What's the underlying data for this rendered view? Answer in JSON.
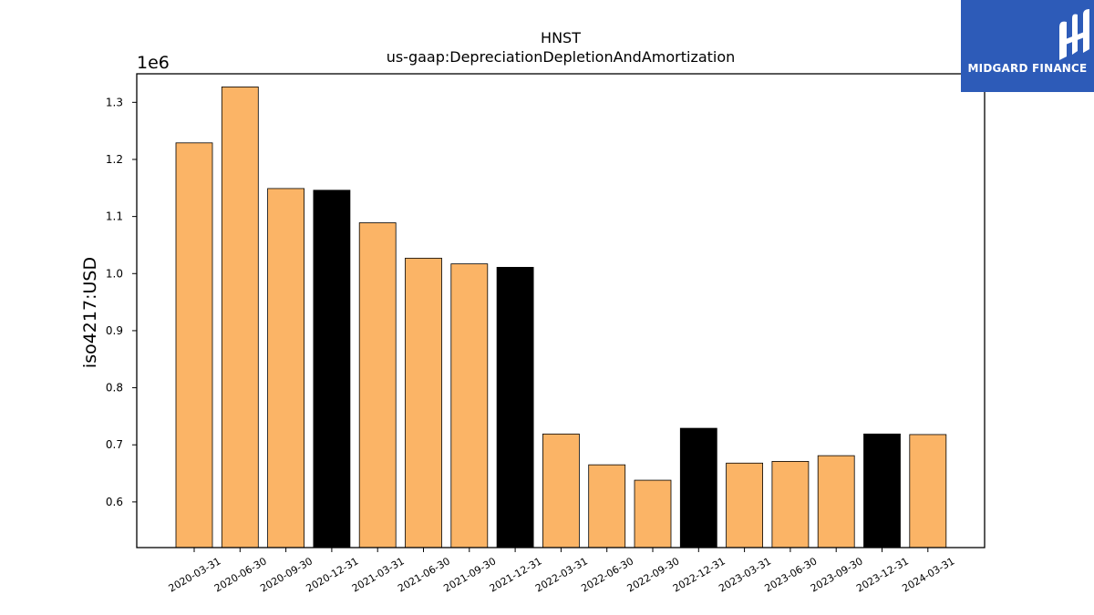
{
  "chart_data": {
    "type": "bar",
    "title": "HNST",
    "subtitle": "us-gaap:DepreciationDepletionAndAmortization",
    "ylabel": "iso4217:USD",
    "xlabel": "",
    "y_scale_label": "1e6",
    "ylim": [
      520000,
      1350000
    ],
    "y_ticks": [
      600000,
      700000,
      800000,
      900000,
      1000000,
      1100000,
      1200000,
      1300000
    ],
    "y_tick_labels": [
      "0.6",
      "0.7",
      "0.8",
      "0.9",
      "1.0",
      "1.1",
      "1.2",
      "1.3"
    ],
    "categories": [
      "2020-03-31",
      "2020-06-30",
      "2020-09-30",
      "2020-12-31",
      "2021-03-31",
      "2021-06-30",
      "2021-09-30",
      "2021-12-31",
      "2022-03-31",
      "2022-06-30",
      "2022-09-30",
      "2022-12-31",
      "2023-03-31",
      "2023-06-30",
      "2023-09-30",
      "2023-12-31",
      "2024-03-31"
    ],
    "values": [
      1229000,
      1327000,
      1149000,
      1146000,
      1089000,
      1027000,
      1017000,
      1011000,
      719000,
      665000,
      638000,
      729000,
      668000,
      671000,
      681000,
      719000,
      718000
    ],
    "bar_colors": [
      "#fbb466",
      "#fbb466",
      "#fbb466",
      "#000000",
      "#fbb466",
      "#fbb466",
      "#fbb466",
      "#000000",
      "#fbb466",
      "#fbb466",
      "#fbb466",
      "#000000",
      "#fbb466",
      "#fbb466",
      "#fbb466",
      "#000000",
      "#fbb466"
    ],
    "grid": false,
    "legend": "none"
  },
  "logo": {
    "text": "MIDGARD FINANCE",
    "background": "#2d5bb8",
    "icon": "midgard-logo-icon"
  }
}
